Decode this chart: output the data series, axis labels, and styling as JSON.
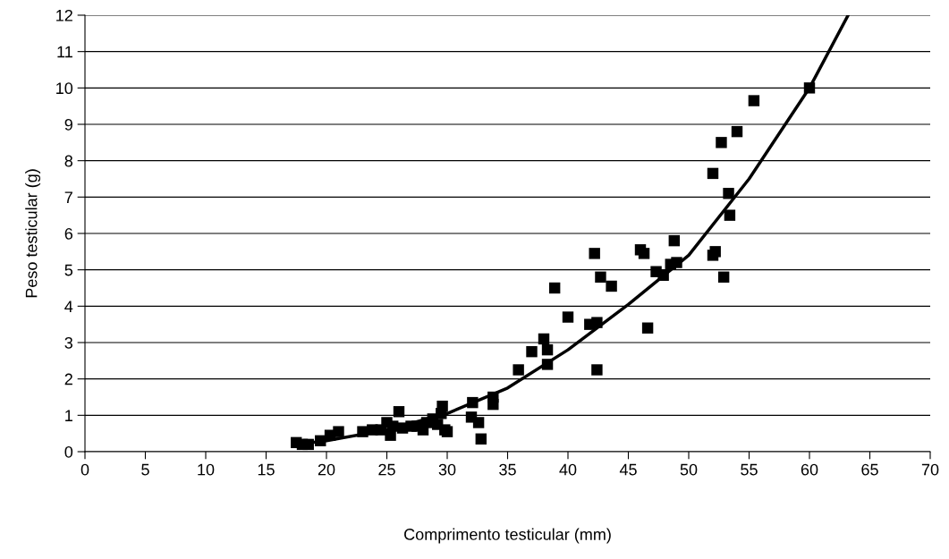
{
  "chart_data": {
    "type": "scatter",
    "xlabel": "Comprimento testicular (mm)",
    "ylabel": "Peso testicular (g)",
    "xlim": [
      0,
      70
    ],
    "xticks": [
      0,
      5,
      10,
      15,
      20,
      25,
      30,
      35,
      40,
      45,
      50,
      55,
      60,
      65,
      70
    ],
    "ylim": [
      0,
      12
    ],
    "yticks": [
      0,
      1,
      2,
      3,
      4,
      5,
      6,
      7,
      8,
      9,
      10,
      11,
      12
    ],
    "grid": "y",
    "legend": false,
    "series": [
      {
        "color": "#000000",
        "marker": "square",
        "x": [
          17.5,
          18,
          18.5,
          19.5,
          20.3,
          21,
          23,
          23.8,
          24.5,
          25,
          25.3,
          25.5,
          26,
          26.3,
          27,
          27.5,
          28,
          28.3,
          28.8,
          29.2,
          29.5,
          29.6,
          29.8,
          30,
          32,
          32.1,
          32.6,
          32.8,
          33.8,
          33.8,
          35.9,
          37,
          38,
          38.3,
          38.3,
          38.9,
          40,
          41.8,
          42.2,
          42.4,
          42.4,
          42.7,
          43.6,
          46,
          46.3,
          46.6,
          47.3,
          47.9,
          48.5,
          48.8,
          49,
          52,
          52,
          52.2,
          52.7,
          52.9,
          53.3,
          53.4,
          54,
          55.4,
          60
        ],
        "values": [
          0.25,
          0.2,
          0.2,
          0.3,
          0.45,
          0.55,
          0.55,
          0.6,
          0.6,
          0.8,
          0.45,
          0.7,
          1.1,
          0.65,
          0.7,
          0.7,
          0.6,
          0.8,
          0.9,
          0.75,
          1.05,
          1.25,
          0.6,
          0.55,
          0.95,
          1.35,
          0.8,
          0.35,
          1.3,
          1.5,
          2.25,
          2.75,
          3.1,
          2.8,
          2.4,
          4.5,
          3.7,
          3.5,
          5.45,
          3.55,
          2.25,
          4.8,
          4.55,
          5.55,
          5.45,
          3.4,
          4.95,
          4.85,
          5.15,
          5.8,
          5.2,
          7.65,
          5.4,
          5.5,
          8.5,
          4.8,
          7.1,
          6.5,
          8.8,
          9.65,
          10
        ]
      },
      {
        "type": "line",
        "color": "#000000",
        "marker": "none",
        "line_style": "solid",
        "x": [
          17.5,
          20,
          25,
          30,
          35,
          40,
          45,
          50,
          55,
          60,
          63.2
        ],
        "values": [
          0.2,
          0.3,
          0.6,
          1.05,
          1.75,
          2.8,
          4.05,
          5.4,
          7.5,
          10.0,
          12.0
        ]
      }
    ]
  }
}
